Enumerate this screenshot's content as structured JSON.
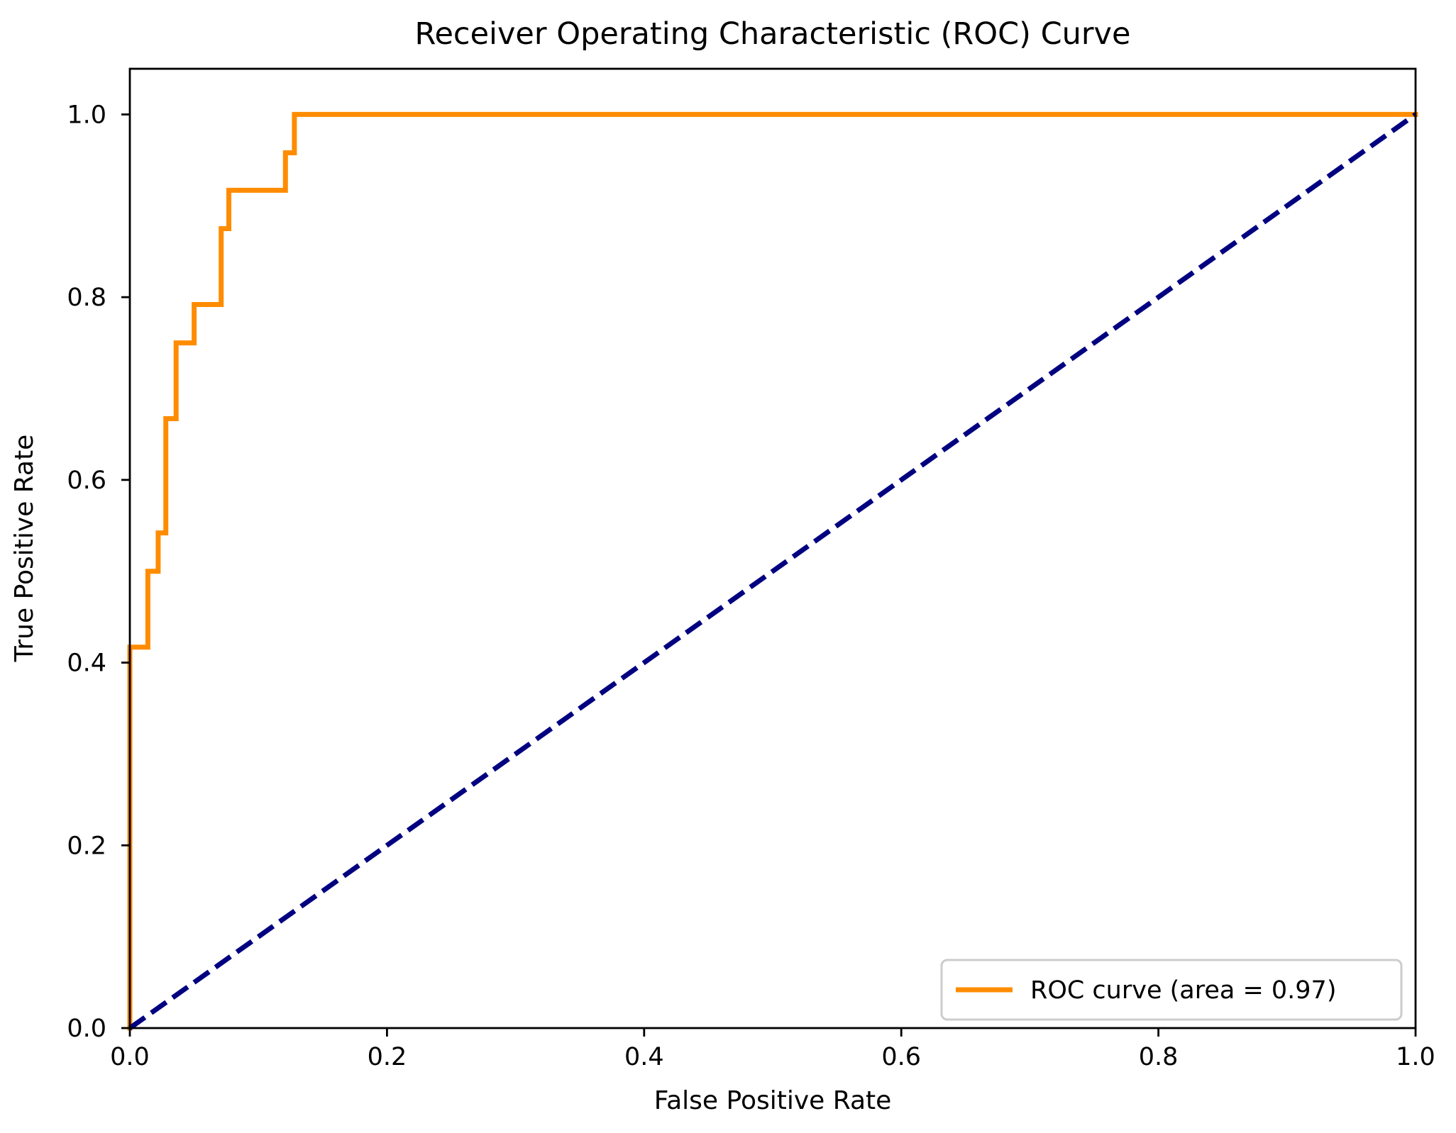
{
  "figure": {
    "background_color": "#ffffff",
    "spine_color": "#000000",
    "text_color": "#000000"
  },
  "chart_data": {
    "type": "line",
    "title": "Receiver Operating Characteristic (ROC) Curve",
    "xlabel": "False Positive Rate",
    "ylabel": "True Positive Rate",
    "xlim": [
      0.0,
      1.0
    ],
    "ylim": [
      0.0,
      1.05
    ],
    "x_ticks": [
      0.0,
      0.2,
      0.4,
      0.6,
      0.8,
      1.0
    ],
    "y_ticks": [
      0.0,
      0.2,
      0.4,
      0.6,
      0.8,
      1.0
    ],
    "grid": false,
    "legend": {
      "position": "lower right",
      "entries": [
        {
          "label": "ROC curve (area = 0.97)",
          "color": "#FF8C00",
          "style": "solid"
        }
      ]
    },
    "auc": 0.97,
    "series": [
      {
        "name": "ROC curve",
        "kind": "step",
        "color": "#FF8C00",
        "linewidth": 7,
        "dash": null,
        "x": [
          0,
          0,
          0.014,
          0.014,
          0.022,
          0.022,
          0.028,
          0.028,
          0.036,
          0.036,
          0.05,
          0.05,
          0.071,
          0.071,
          0.077,
          0.077,
          0.121,
          0.121,
          0.128,
          0.128,
          1.0
        ],
        "y": [
          0,
          0.417,
          0.417,
          0.5,
          0.5,
          0.542,
          0.542,
          0.667,
          0.667,
          0.75,
          0.75,
          0.792,
          0.792,
          0.875,
          0.875,
          0.917,
          0.917,
          0.958,
          0.958,
          1.0,
          1.0
        ]
      },
      {
        "name": "Chance diagonal",
        "kind": "line",
        "color": "#000080",
        "linewidth": 7,
        "dash": "26 11",
        "x": [
          0,
          1
        ],
        "y": [
          0,
          1
        ]
      }
    ]
  }
}
